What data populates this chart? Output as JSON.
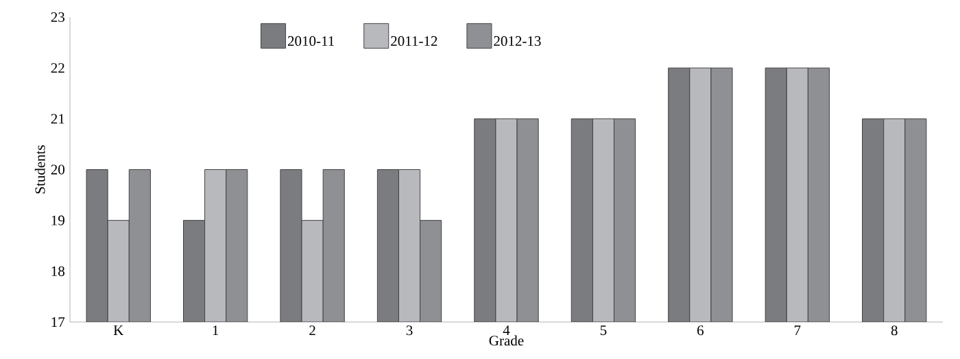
{
  "chart_data": {
    "type": "bar",
    "xlabel": "Grade",
    "ylabel": "Students",
    "categories": [
      "K",
      "1",
      "2",
      "3",
      "4",
      "5",
      "6",
      "7",
      "8"
    ],
    "series": [
      {
        "name": "2010-11",
        "color": "#7b7c80",
        "values": [
          20,
          19,
          20,
          20,
          21,
          21,
          22,
          22,
          21
        ]
      },
      {
        "name": "2011-12",
        "color": "#b8b9bd",
        "values": [
          19,
          20,
          19,
          20,
          21,
          21,
          22,
          22,
          21
        ]
      },
      {
        "name": "2012-13",
        "color": "#8f9094",
        "values": [
          20,
          20,
          20,
          19,
          21,
          21,
          22,
          22,
          21
        ]
      }
    ],
    "ylim": [
      17,
      23
    ],
    "yticks": [
      17,
      18,
      19,
      20,
      21,
      22,
      23
    ],
    "grid": false,
    "legend": "top"
  }
}
